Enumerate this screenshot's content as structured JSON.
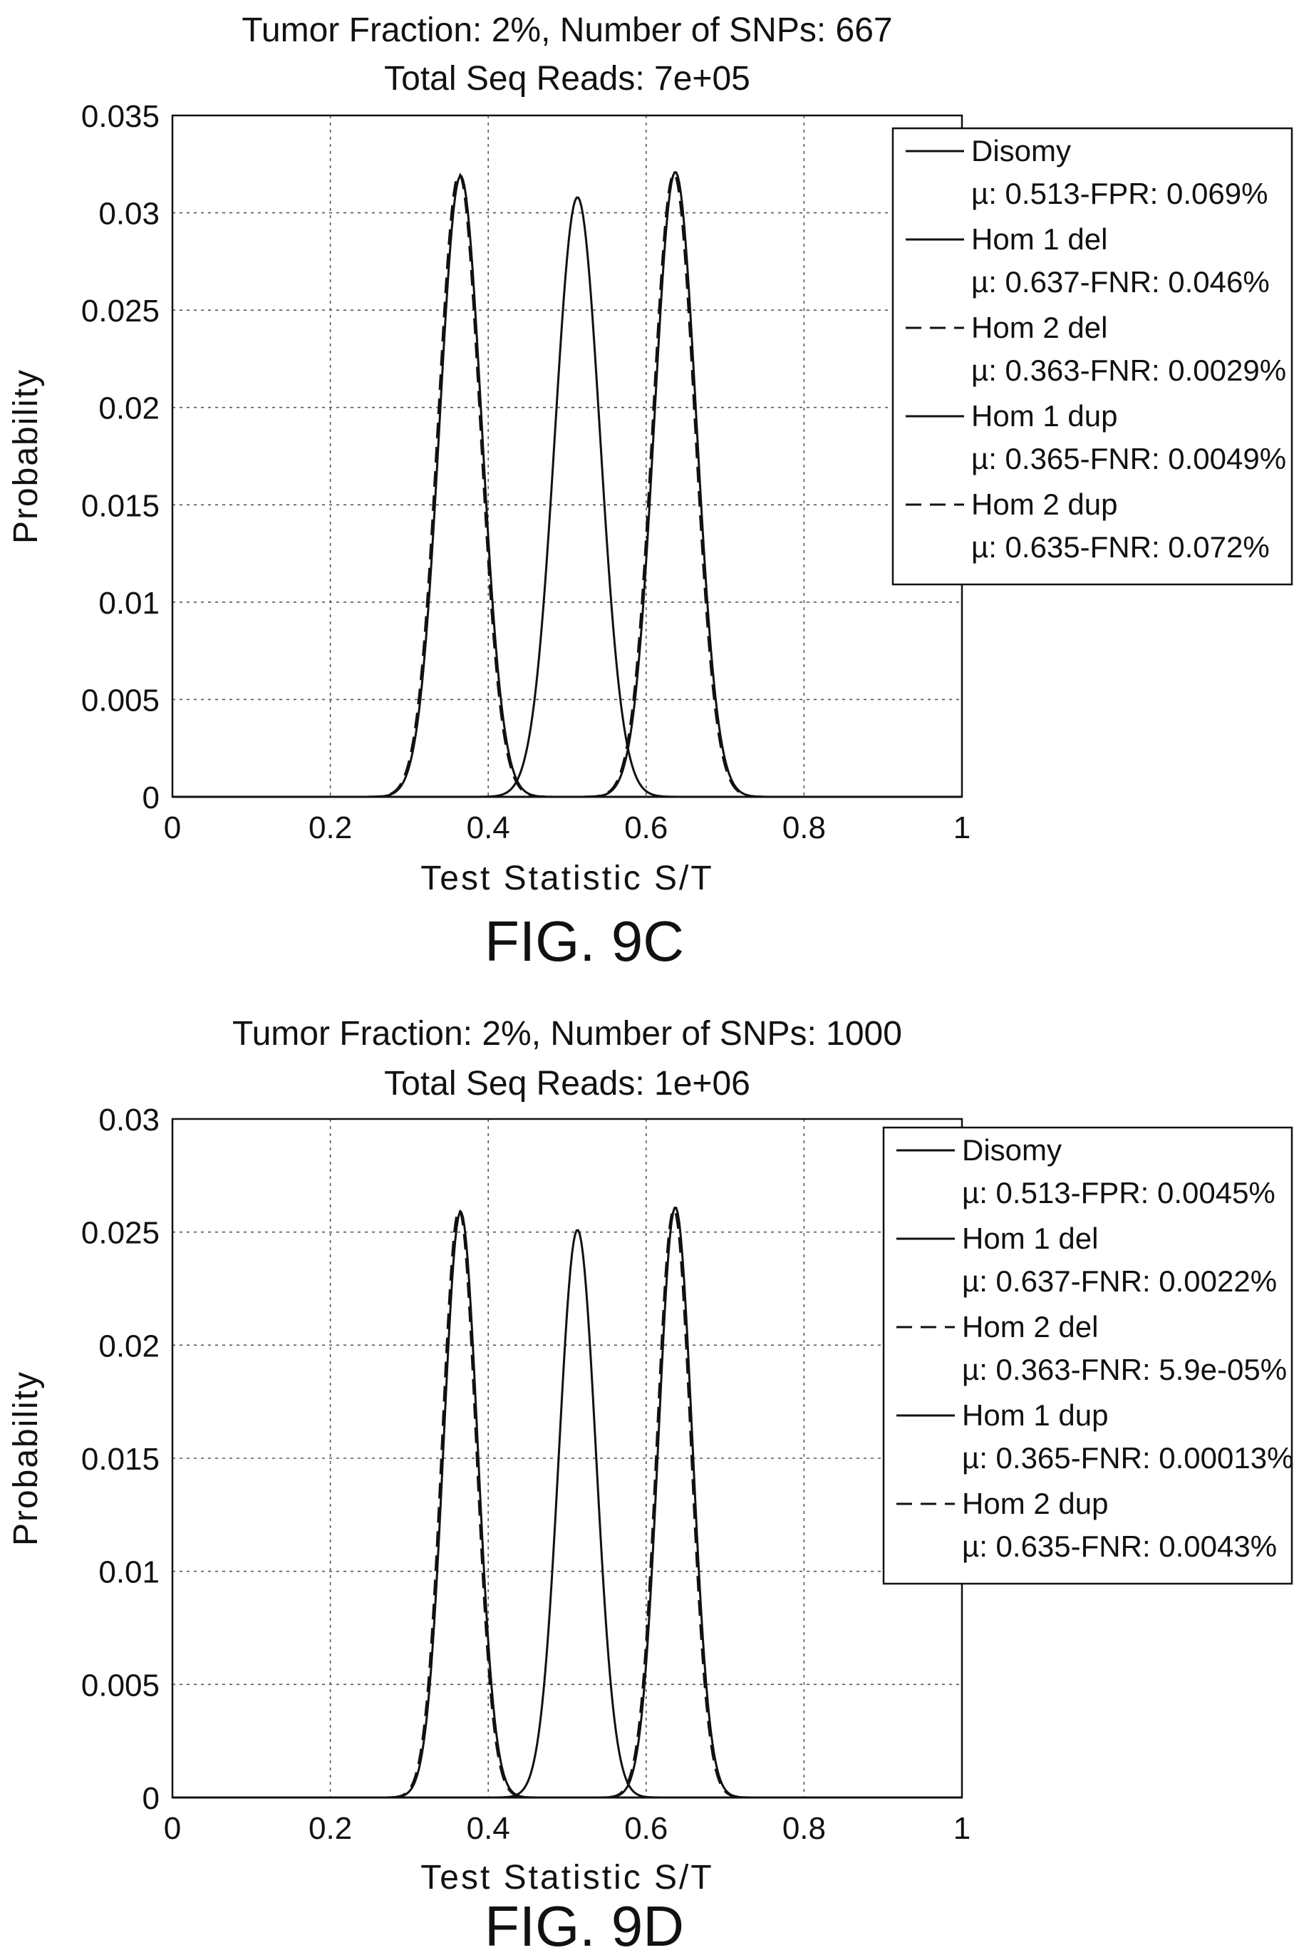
{
  "chart_data": [
    {
      "type": "line",
      "title": "Tumor Fraction: 2%, Number of SNPs: 667",
      "subtitle": "Total Seq Reads: 7e+05",
      "xlabel": "Test Statistic S/T",
      "ylabel": "Probability",
      "xlim": [
        0,
        1
      ],
      "ylim": [
        0,
        0.035
      ],
      "xticks": [
        "0",
        "0.2",
        "0.4",
        "0.6",
        "0.8",
        "1"
      ],
      "yticks": [
        "0",
        "0.005",
        "0.01",
        "0.015",
        "0.02",
        "0.025",
        "0.03",
        "0.035"
      ],
      "grid": true,
      "legend_position": "top-right",
      "series": [
        {
          "name": "Disomy",
          "stats": "µ: 0.513-FPR: 0.069%",
          "mean": 0.513,
          "peak": 0.0308,
          "sd": 0.0285,
          "line": "solid"
        },
        {
          "name": "Hom 1 del",
          "stats": "µ: 0.637-FNR: 0.046%",
          "mean": 0.637,
          "peak": 0.0321,
          "sd": 0.0265,
          "line": "solid"
        },
        {
          "name": "Hom 2 del",
          "stats": "µ: 0.363-FNR: 0.0029%",
          "mean": 0.363,
          "peak": 0.032,
          "sd": 0.0265,
          "line": "dashed"
        },
        {
          "name": "Hom 1 dup",
          "stats": "µ: 0.365-FNR: 0.0049%",
          "mean": 0.365,
          "peak": 0.0319,
          "sd": 0.0265,
          "line": "solid"
        },
        {
          "name": "Hom 2 dup",
          "stats": "µ: 0.635-FNR: 0.072%",
          "mean": 0.635,
          "peak": 0.032,
          "sd": 0.0265,
          "line": "dashed"
        }
      ],
      "caption": "FIG. 9C"
    },
    {
      "type": "line",
      "title": "Tumor Fraction: 2%, Number of SNPs: 1000",
      "subtitle": "Total Seq Reads: 1e+06",
      "xlabel": "Test Statistic S/T",
      "ylabel": "Probability",
      "xlim": [
        0,
        1
      ],
      "ylim": [
        0,
        0.03
      ],
      "xticks": [
        "0",
        "0.2",
        "0.4",
        "0.6",
        "0.8",
        "1"
      ],
      "yticks": [
        "0",
        "0.005",
        "0.01",
        "0.015",
        "0.02",
        "0.025",
        "0.03"
      ],
      "grid": true,
      "legend_position": "top-right",
      "series": [
        {
          "name": "Disomy",
          "stats": "µ: 0.513-FPR: 0.0045%",
          "mean": 0.513,
          "peak": 0.0251,
          "sd": 0.0235,
          "line": "solid"
        },
        {
          "name": "Hom 1 del",
          "stats": "µ: 0.637-FNR: 0.0022%",
          "mean": 0.637,
          "peak": 0.0261,
          "sd": 0.0215,
          "line": "solid"
        },
        {
          "name": "Hom 2 del",
          "stats": "µ: 0.363-FNR: 5.9e-05%",
          "mean": 0.363,
          "peak": 0.026,
          "sd": 0.0215,
          "line": "dashed"
        },
        {
          "name": "Hom 1 dup",
          "stats": "µ: 0.365-FNR: 0.00013%",
          "mean": 0.365,
          "peak": 0.0259,
          "sd": 0.0215,
          "line": "solid"
        },
        {
          "name": "Hom 2 dup",
          "stats": "µ: 0.635-FNR: 0.0043%",
          "mean": 0.635,
          "peak": 0.026,
          "sd": 0.0215,
          "line": "dashed"
        }
      ],
      "caption": "FIG. 9D"
    }
  ]
}
